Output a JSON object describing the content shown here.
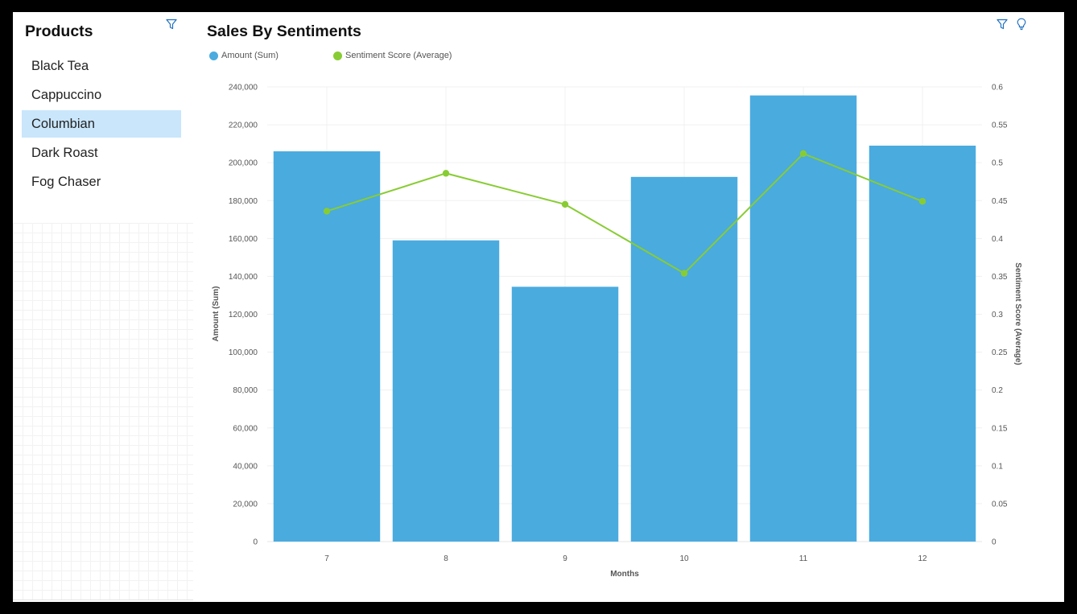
{
  "products": {
    "title": "Products",
    "filter_icon": "filter-icon",
    "items": [
      {
        "label": "Black Tea",
        "selected": false
      },
      {
        "label": "Cappuccino",
        "selected": false
      },
      {
        "label": "Columbian",
        "selected": true
      },
      {
        "label": "Dark Roast",
        "selected": false
      },
      {
        "label": "Fog Chaser",
        "selected": false
      }
    ],
    "selected_color": "#c9e6fb"
  },
  "chart_panel": {
    "filter_icon": "filter-icon",
    "insight_icon": "lightbulb-icon"
  },
  "chart_data": {
    "type": "bar",
    "title": "Sales By Sentiments",
    "xlabel": "Months",
    "ylabel": "Amount (Sum)",
    "y2label": "Sentiment Score (Average)",
    "categories": [
      "7",
      "8",
      "9",
      "10",
      "11",
      "12"
    ],
    "ylim": [
      0,
      240000
    ],
    "y_ticks": [
      "0",
      "20,000",
      "40,000",
      "60,000",
      "80,000",
      "100,000",
      "120,000",
      "140,000",
      "160,000",
      "180,000",
      "200,000",
      "220,000",
      "240,000"
    ],
    "y2lim": [
      0,
      0.6
    ],
    "y2_ticks": [
      "0",
      "0.05",
      "0.1",
      "0.15",
      "0.2",
      "0.25",
      "0.3",
      "0.35",
      "0.4",
      "0.45",
      "0.5",
      "0.55",
      "0.6"
    ],
    "grid": true,
    "legend_placement": "top-left",
    "series": [
      {
        "name": "Amount (Sum)",
        "type": "bar",
        "axis": "left",
        "color": "#4aabdf",
        "values": [
          206000,
          159000,
          134500,
          192500,
          235500,
          209000
        ]
      },
      {
        "name": "Sentiment Score (Average)",
        "type": "line",
        "axis": "right",
        "color": "#88cc33",
        "values": [
          0.436,
          0.486,
          0.445,
          0.354,
          0.512,
          0.449
        ]
      }
    ]
  }
}
